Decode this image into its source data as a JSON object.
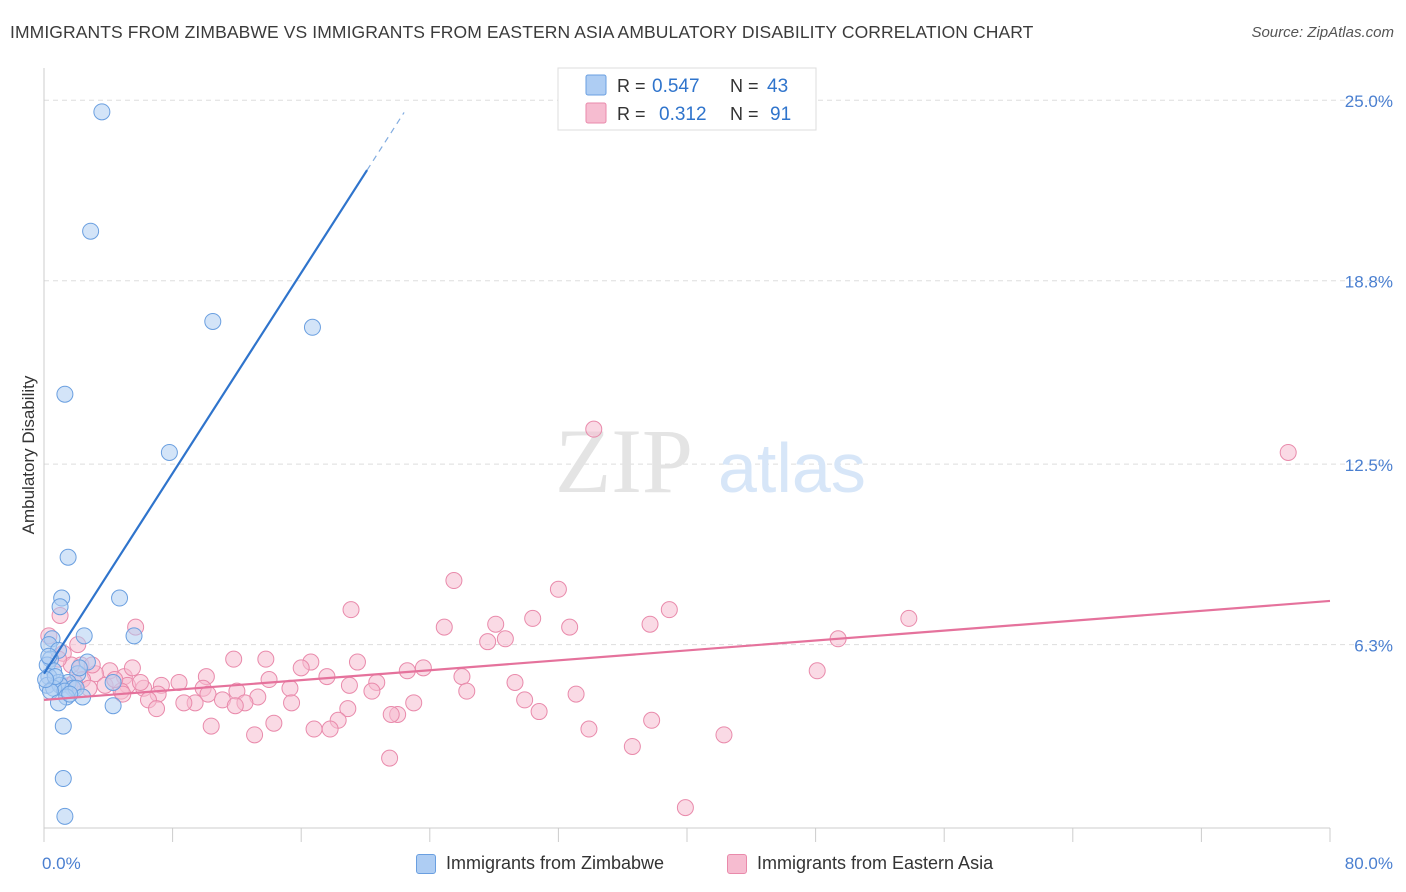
{
  "title": "IMMIGRANTS FROM ZIMBABWE VS IMMIGRANTS FROM EASTERN ASIA AMBULATORY DISABILITY CORRELATION CHART",
  "source": "Source: ZipAtlas.com",
  "watermark": {
    "zip": "ZIP",
    "atlas": "atlas"
  },
  "colors": {
    "zimbabwe_fill": "#aecdf3",
    "zimbabwe_stroke": "#6a9fe0",
    "zimbabwe_line": "#2f74cc",
    "easternasia_fill": "#f6bcd0",
    "easternasia_stroke": "#e98aab",
    "easternasia_line": "#e5729c",
    "tick_label": "#4a7fd0",
    "grid": "#dddddd"
  },
  "stats_box": {
    "rows": [
      {
        "r_label": "R =",
        "r_value": "0.547",
        "n_label": "N =",
        "n_value": "43"
      },
      {
        "r_label": "R =",
        "r_value": "0.312",
        "n_label": "N =",
        "n_value": "91"
      }
    ]
  },
  "legend": {
    "zimbabwe": "Immigrants from Zimbabwe",
    "easternasia": "Immigrants from Eastern Asia"
  },
  "chart_data": {
    "type": "scatter",
    "xlabel": "",
    "ylabel": "Ambulatory Disability",
    "xlim": [
      0,
      80
    ],
    "ylim": [
      0,
      25.9
    ],
    "x_tick_labels": [
      "0.0%",
      "80.0%"
    ],
    "y_ticks": [
      6.3,
      12.5,
      18.8,
      25.0
    ],
    "y_tick_labels": [
      "6.3%",
      "12.5%",
      "18.8%",
      "25.0%"
    ],
    "grid": true,
    "legend_position": "bottom",
    "series": [
      {
        "name": "Immigrants from Zimbabwe",
        "r": 0.547,
        "n": 43,
        "trend": {
          "x": [
            0,
            20.1
          ],
          "y": [
            5.3,
            22.6
          ],
          "dashed_extension_to_x": 22.4
        },
        "points": [
          [
            3.6,
            24.6
          ],
          [
            2.9,
            20.5
          ],
          [
            10.5,
            17.4
          ],
          [
            16.7,
            17.2
          ],
          [
            1.3,
            14.9
          ],
          [
            7.8,
            12.9
          ],
          [
            1.5,
            9.3
          ],
          [
            4.7,
            7.9
          ],
          [
            1.1,
            7.9
          ],
          [
            1.0,
            7.6
          ],
          [
            5.6,
            6.6
          ],
          [
            2.5,
            6.6
          ],
          [
            0.5,
            6.5
          ],
          [
            0.3,
            6.3
          ],
          [
            0.9,
            6.1
          ],
          [
            0.4,
            5.8
          ],
          [
            2.7,
            5.7
          ],
          [
            0.2,
            5.6
          ],
          [
            0.6,
            5.4
          ],
          [
            2.1,
            5.3
          ],
          [
            0.3,
            5.2
          ],
          [
            0.9,
            5.0
          ],
          [
            1.5,
            5.0
          ],
          [
            0.2,
            4.9
          ],
          [
            4.3,
            5.0
          ],
          [
            1.0,
            4.9
          ],
          [
            0.6,
            4.8
          ],
          [
            1.8,
            4.8
          ],
          [
            1.3,
            4.7
          ],
          [
            0.4,
            4.7
          ],
          [
            2.0,
            4.8
          ],
          [
            2.4,
            4.5
          ],
          [
            1.4,
            4.5
          ],
          [
            0.9,
            4.3
          ],
          [
            4.3,
            4.2
          ],
          [
            1.2,
            3.5
          ],
          [
            1.2,
            1.7
          ],
          [
            1.3,
            0.4
          ],
          [
            0.3,
            5.9
          ],
          [
            2.2,
            5.5
          ],
          [
            0.7,
            5.2
          ],
          [
            0.1,
            5.1
          ],
          [
            1.6,
            4.6
          ]
        ]
      },
      {
        "name": "Immigrants from Eastern Asia",
        "r": 0.312,
        "n": 91,
        "trend": {
          "x": [
            0,
            80
          ],
          "y": [
            4.4,
            7.8
          ]
        },
        "points": [
          [
            34.2,
            13.7
          ],
          [
            77.4,
            12.9
          ],
          [
            25.5,
            8.5
          ],
          [
            32.0,
            8.2
          ],
          [
            38.9,
            7.5
          ],
          [
            19.1,
            7.5
          ],
          [
            53.8,
            7.2
          ],
          [
            30.4,
            7.2
          ],
          [
            28.1,
            7.0
          ],
          [
            24.9,
            6.9
          ],
          [
            32.7,
            6.9
          ],
          [
            37.7,
            7.0
          ],
          [
            5.7,
            6.9
          ],
          [
            28.7,
            6.5
          ],
          [
            27.6,
            6.4
          ],
          [
            49.4,
            6.5
          ],
          [
            1.0,
            7.3
          ],
          [
            0.3,
            6.6
          ],
          [
            1.2,
            6.0
          ],
          [
            11.8,
            5.8
          ],
          [
            13.8,
            5.8
          ],
          [
            16.6,
            5.7
          ],
          [
            19.5,
            5.7
          ],
          [
            16.0,
            5.5
          ],
          [
            23.6,
            5.5
          ],
          [
            22.6,
            5.4
          ],
          [
            48.1,
            5.4
          ],
          [
            4.1,
            5.4
          ],
          [
            2.3,
            5.6
          ],
          [
            1.7,
            5.6
          ],
          [
            3.2,
            5.3
          ],
          [
            5.0,
            5.2
          ],
          [
            10.1,
            5.2
          ],
          [
            14.0,
            5.1
          ],
          [
            17.6,
            5.2
          ],
          [
            20.7,
            5.0
          ],
          [
            26.0,
            5.2
          ],
          [
            29.3,
            5.0
          ],
          [
            8.4,
            5.0
          ],
          [
            9.9,
            4.8
          ],
          [
            7.3,
            4.9
          ],
          [
            12.0,
            4.7
          ],
          [
            15.3,
            4.8
          ],
          [
            2.4,
            5.1
          ],
          [
            1.6,
            4.9
          ],
          [
            3.8,
            4.9
          ],
          [
            5.2,
            4.9
          ],
          [
            6.2,
            4.8
          ],
          [
            19.0,
            4.9
          ],
          [
            20.4,
            4.7
          ],
          [
            23.0,
            4.3
          ],
          [
            26.3,
            4.7
          ],
          [
            33.1,
            4.6
          ],
          [
            2.8,
            4.8
          ],
          [
            4.8,
            4.7
          ],
          [
            7.1,
            4.6
          ],
          [
            10.2,
            4.6
          ],
          [
            13.3,
            4.5
          ],
          [
            6.5,
            4.4
          ],
          [
            9.4,
            4.3
          ],
          [
            11.1,
            4.4
          ],
          [
            12.5,
            4.3
          ],
          [
            15.4,
            4.3
          ],
          [
            8.7,
            4.3
          ],
          [
            7.0,
            4.1
          ],
          [
            29.9,
            4.4
          ],
          [
            18.9,
            4.1
          ],
          [
            22.0,
            3.9
          ],
          [
            21.6,
            3.9
          ],
          [
            30.8,
            4.0
          ],
          [
            10.4,
            3.5
          ],
          [
            14.3,
            3.6
          ],
          [
            18.3,
            3.7
          ],
          [
            16.8,
            3.4
          ],
          [
            17.8,
            3.4
          ],
          [
            13.1,
            3.2
          ],
          [
            33.9,
            3.4
          ],
          [
            37.8,
            3.7
          ],
          [
            42.3,
            3.2
          ],
          [
            36.6,
            2.8
          ],
          [
            21.5,
            2.4
          ],
          [
            39.9,
            0.7
          ],
          [
            5.5,
            5.5
          ],
          [
            11.9,
            4.2
          ],
          [
            3.0,
            5.6
          ],
          [
            1.9,
            5.0
          ],
          [
            4.4,
            5.1
          ],
          [
            0.9,
            5.8
          ],
          [
            2.1,
            6.3
          ],
          [
            4.9,
            4.6
          ],
          [
            6.0,
            5.0
          ]
        ]
      }
    ]
  }
}
